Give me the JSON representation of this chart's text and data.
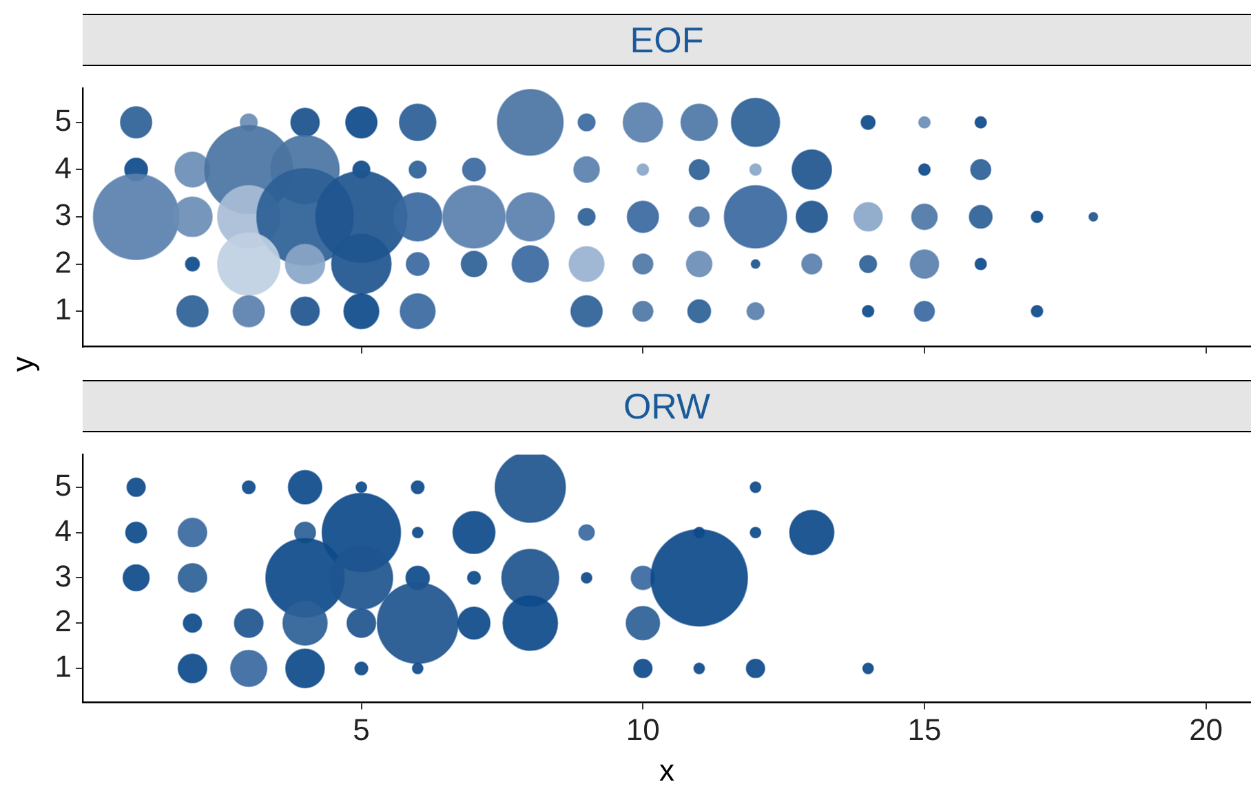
{
  "chart_data": [
    {
      "type": "bubble",
      "title": "EOF",
      "ylabel": "y",
      "xlim": [
        0.05,
        20.8
      ],
      "xticks": [
        5,
        10,
        15,
        20
      ],
      "ylim": [
        0.25,
        5.72
      ],
      "yticks": [
        1,
        2,
        3,
        4,
        5
      ],
      "tick_labels": "y",
      "x": [
        1,
        3,
        4,
        5,
        6,
        8,
        9,
        10,
        11,
        12,
        14,
        15,
        16,
        1,
        2,
        3,
        4,
        5,
        6,
        7,
        9,
        10,
        11,
        12,
        13,
        15,
        16,
        1,
        2,
        3,
        4,
        5,
        6,
        7,
        8,
        9,
        10,
        11,
        12,
        13,
        14,
        15,
        16,
        17,
        18,
        2,
        3,
        4,
        5,
        6,
        7,
        8,
        9,
        10,
        11,
        12,
        13,
        14,
        15,
        16,
        2,
        3,
        4,
        5,
        6,
        9,
        10,
        11,
        12,
        14,
        15,
        17
      ],
      "values": [
        5,
        5,
        5,
        5,
        5,
        5,
        5,
        5,
        5,
        5,
        5,
        5,
        5,
        4,
        4,
        4,
        4,
        4,
        4,
        4,
        4,
        4,
        4,
        4,
        4,
        4,
        4,
        3,
        3,
        3,
        3,
        3,
        3,
        3,
        3,
        3,
        3,
        3,
        3,
        3,
        3,
        3,
        3,
        3,
        3,
        2,
        2,
        2,
        2,
        2,
        2,
        2,
        2,
        2,
        2,
        2,
        2,
        2,
        2,
        2,
        1,
        1,
        1,
        1,
        1,
        1,
        1,
        1,
        1,
        1,
        1,
        1
      ],
      "sizes": [
        0.105,
        0.031,
        0.087,
        0.105,
        0.143,
        0.464,
        0.031,
        0.167,
        0.143,
        0.25,
        0.021,
        0.014,
        0.014,
        0.056,
        0.131,
        0.833,
        0.5,
        0.031,
        0.031,
        0.056,
        0.07,
        0.014,
        0.043,
        0.014,
        0.167,
        0.014,
        0.043,
        0.786,
        0.167,
        0.417,
        1,
        0.893,
        0.25,
        0.417,
        0.25,
        0.031,
        0.105,
        0.043,
        0.417,
        0.105,
        0.087,
        0.07,
        0.056,
        0.014,
        0.008,
        0.021,
        0.417,
        0.167,
        0.381,
        0.056,
        0.07,
        0.143,
        0.131,
        0.043,
        0.07,
        0.008,
        0.043,
        0.031,
        0.087,
        0.014,
        0.105,
        0.105,
        0.087,
        0.131,
        0.131,
        0.105,
        0.043,
        0.056,
        0.031,
        0.014,
        0.043,
        0.014
      ],
      "colors": [
        "#2c5f96",
        "#6a8db5",
        "#18508c",
        "#0d4a8a",
        "#2a5e96",
        "#4a73a3",
        "#3a68a0",
        "#5a80ae",
        "#4d77a6",
        "#2c5f96",
        "#0d4a8a",
        "#6a8db5",
        "#0d4a8a",
        "#0d4a8a",
        "#6a8db5",
        "#4a73a3",
        "#4a73a3",
        "#0d4a8a",
        "#2c5f96",
        "#3a68a0",
        "#5a80ae",
        "#8aa6c8",
        "#2c5f96",
        "#8aa6c8",
        "#1e558f",
        "#0d4a8a",
        "#2c5f96",
        "#5a80ae",
        "#6a8db5",
        "#a8bdd6",
        "#2c5f96",
        "#1e558f",
        "#3a68a0",
        "#5a80ae",
        "#5a80ae",
        "#2c5f96",
        "#3a68a0",
        "#4d77a6",
        "#3a68a0",
        "#1e558f",
        "#8aa6c8",
        "#4d77a6",
        "#2c5f96",
        "#0d4a8a",
        "#1e558f",
        "#0d4a8a",
        "#c0d0e2",
        "#8aa6c8",
        "#1e558f",
        "#3a68a0",
        "#2c5f96",
        "#3a68a0",
        "#98b2d0",
        "#4d77a6",
        "#6a8db5",
        "#1e558f",
        "#5a80ae",
        "#2c5f96",
        "#5a80ae",
        "#0d4a8a",
        "#2c5f96",
        "#5a80ae",
        "#1e558f",
        "#0d4a8a",
        "#3a68a0",
        "#2c5f96",
        "#4d77a6",
        "#2c5f96",
        "#5a80ae",
        "#0d4a8a",
        "#3a68a0",
        "#0d4a8a"
      ]
    },
    {
      "type": "bubble",
      "title": "ORW",
      "xlabel": "x",
      "xlim": [
        0.05,
        20.8
      ],
      "xticks": [
        5,
        10,
        15,
        20
      ],
      "ylim": [
        0.25,
        5.72
      ],
      "yticks": [
        1,
        2,
        3,
        4,
        5
      ],
      "x": [
        1,
        3,
        4,
        5,
        6,
        8,
        12,
        1,
        2,
        4,
        5,
        6,
        7,
        9,
        11,
        12,
        13,
        1,
        2,
        4,
        5,
        6,
        7,
        8,
        9,
        10,
        11,
        2,
        3,
        4,
        5,
        6,
        7,
        8,
        10,
        2,
        3,
        4,
        5,
        6,
        10,
        11,
        12,
        14
      ],
      "values": [
        5,
        5,
        5,
        5,
        5,
        5,
        5,
        4,
        4,
        4,
        4,
        4,
        4,
        4,
        4,
        4,
        4,
        3,
        3,
        3,
        3,
        3,
        3,
        3,
        3,
        3,
        3,
        2,
        2,
        2,
        2,
        2,
        2,
        2,
        2,
        1,
        1,
        1,
        1,
        1,
        1,
        1,
        1,
        1
      ],
      "sizes": [
        0.036,
        0.018,
        0.12,
        0.012,
        0.018,
        0.53,
        0.012,
        0.047,
        0.088,
        0.047,
        0.66,
        0.012,
        0.19,
        0.026,
        0.012,
        0.012,
        0.21,
        0.073,
        0.088,
        0.66,
        0.42,
        0.059,
        0.018,
        0.35,
        0.012,
        0.059,
        1,
        0.036,
        0.088,
        0.21,
        0.088,
        0.7,
        0.11,
        0.32,
        0.12,
        0.088,
        0.14,
        0.16,
        0.018,
        0.012,
        0.036,
        0.012,
        0.036,
        0.012
      ],
      "colors": [
        "#0d4a8a",
        "#0d4a8a",
        "#0d4a8a",
        "#0d4a8a",
        "#0d4a8a",
        "#1e558f",
        "#0d4a8a",
        "#0d4a8a",
        "#3a68a0",
        "#2c5f96",
        "#0d4a8a",
        "#0d4a8a",
        "#0d4a8a",
        "#3a68a0",
        "#0d4a8a",
        "#0d4a8a",
        "#0d4a8a",
        "#0d4a8a",
        "#2c5f96",
        "#0d4a8a",
        "#1e558f",
        "#0d4a8a",
        "#0d4a8a",
        "#1e558f",
        "#0d4a8a",
        "#3a68a0",
        "#0d4a8a",
        "#0d4a8a",
        "#1e558f",
        "#2c5f96",
        "#1e558f",
        "#1e558f",
        "#0d4a8a",
        "#0d4a8a",
        "#2c5f96",
        "#0d4a8a",
        "#3a68a0",
        "#0d4a8a",
        "#0d4a8a",
        "#0d4a8a",
        "#0d4a8a",
        "#0d4a8a",
        "#0d4a8a",
        "#0d4a8a"
      ]
    }
  ]
}
